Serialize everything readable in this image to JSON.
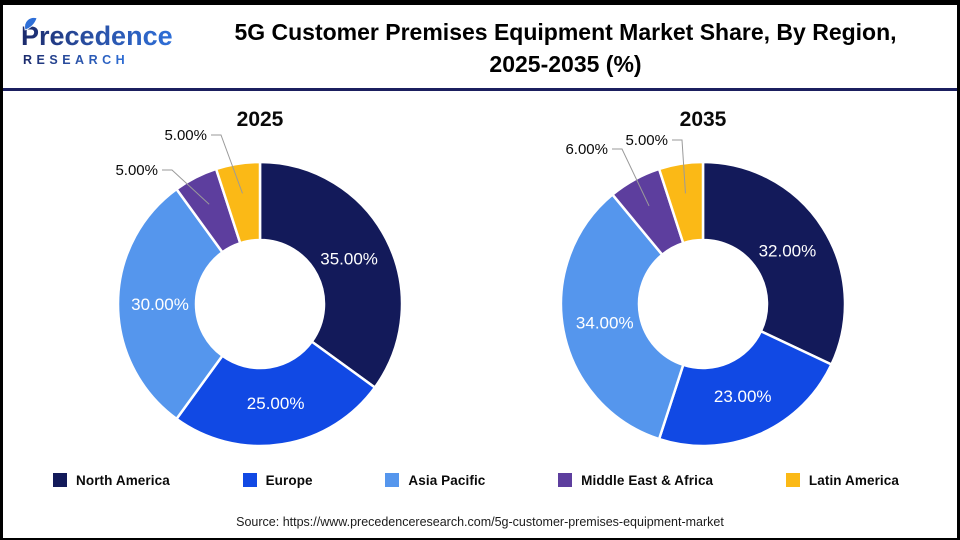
{
  "header": {
    "logo_line1": "Precedence",
    "logo_line2": "R E S E A R C H",
    "title_line1": "5G Customer Premises Equipment Market Share, By Region,",
    "title_line2": "2025-2035 (%)"
  },
  "legend": {
    "items": [
      {
        "label": "North America",
        "color": "#131A5A"
      },
      {
        "label": "Europe",
        "color": "#1149E4"
      },
      {
        "label": "Asia Pacific",
        "color": "#5596ED"
      },
      {
        "label": "Middle East & Africa",
        "color": "#5D3E9E"
      },
      {
        "label": "Latin America",
        "color": "#FBB916"
      }
    ]
  },
  "chart_data": [
    {
      "type": "pie",
      "subtype": "donut",
      "title": "2025",
      "unit": "%",
      "categories": [
        "North America",
        "Europe",
        "Asia Pacific",
        "Middle East & Africa",
        "Latin America"
      ],
      "values": [
        35,
        25,
        30,
        5,
        5
      ],
      "data_labels": [
        "35.00%",
        "25.00%",
        "30.00%",
        "5.00%",
        "5.00%"
      ],
      "legend_position": "bottom",
      "start_angle_deg": 0,
      "direction": "clockwise"
    },
    {
      "type": "pie",
      "subtype": "donut",
      "title": "2035",
      "unit": "%",
      "categories": [
        "North America",
        "Europe",
        "Asia Pacific",
        "Middle East & Africa",
        "Latin America"
      ],
      "values": [
        32,
        23,
        34,
        6,
        5
      ],
      "data_labels": [
        "32.00%",
        "23.00%",
        "34.00%",
        "6.00%",
        "5.00%"
      ],
      "legend_position": "bottom",
      "start_angle_deg": 0,
      "direction": "clockwise"
    }
  ],
  "source": "Source: https://www.precedenceresearch.com/5g-customer-premises-equipment-market"
}
